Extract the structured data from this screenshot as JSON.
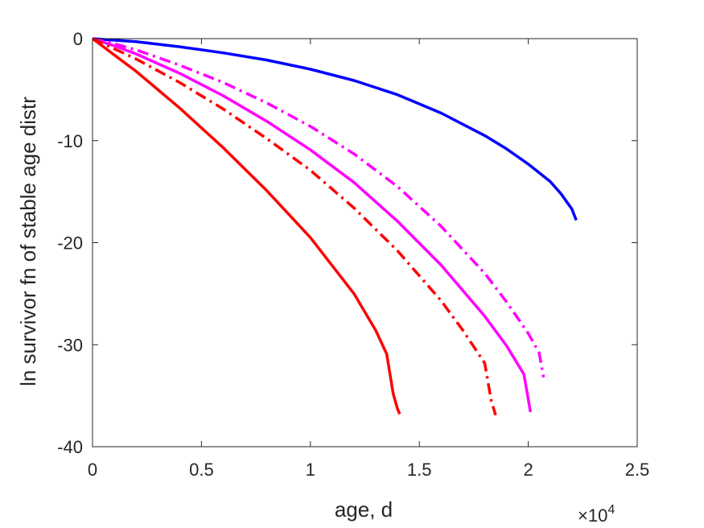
{
  "chart_data": {
    "type": "line",
    "title": "",
    "xlabel": "age, d",
    "ylabel": "ln survivor fn of stable age distr",
    "x_exponent_label": "×10",
    "x_exponent_power": "4",
    "xlim": [
      0,
      25000
    ],
    "ylim": [
      -40,
      0
    ],
    "x_ticks": [
      0,
      5000,
      10000,
      15000,
      20000,
      25000
    ],
    "x_tick_labels": [
      "0",
      "0.5",
      "1",
      "1.5",
      "2",
      "2.5"
    ],
    "y_ticks": [
      0,
      -10,
      -20,
      -30,
      -40
    ],
    "y_tick_labels": [
      "0",
      "-10",
      "-20",
      "-30",
      "-40"
    ],
    "grid": false,
    "legend": "none",
    "series": [
      {
        "color": "#0000ff",
        "dash": "solid",
        "x": [
          0,
          2000,
          4000,
          6000,
          8000,
          10000,
          12000,
          14000,
          16000,
          18000,
          19000,
          20000,
          21000,
          21500,
          22000,
          22200
        ],
        "y": [
          0,
          -0.3,
          -0.8,
          -1.4,
          -2.1,
          -3.0,
          -4.1,
          -5.5,
          -7.3,
          -9.5,
          -10.8,
          -12.3,
          -14.0,
          -15.2,
          -16.7,
          -17.8
        ]
      },
      {
        "color": "#ff00ff",
        "dash": "dashdot",
        "x": [
          0,
          1000,
          2000,
          4000,
          6000,
          8000,
          10000,
          12000,
          14000,
          16000,
          18000,
          19000,
          20000,
          20500,
          20700
        ],
        "y": [
          0,
          -0.5,
          -1.1,
          -2.6,
          -4.3,
          -6.3,
          -8.6,
          -11.3,
          -14.5,
          -18.4,
          -23.0,
          -25.8,
          -28.9,
          -30.8,
          -33.2
        ]
      },
      {
        "color": "#ff00ff",
        "dash": "solid",
        "x": [
          0,
          1000,
          2000,
          4000,
          6000,
          8000,
          10000,
          12000,
          14000,
          16000,
          18000,
          19000,
          19800,
          20100
        ],
        "y": [
          0,
          -0.7,
          -1.5,
          -3.4,
          -5.6,
          -8.1,
          -10.9,
          -14.1,
          -17.9,
          -22.2,
          -27.2,
          -30.1,
          -32.9,
          -36.6
        ]
      },
      {
        "color": "#ff0000",
        "dash": "dashdot",
        "x": [
          0,
          1000,
          2000,
          4000,
          6000,
          8000,
          10000,
          12000,
          14000,
          16000,
          17000,
          18000,
          18300,
          18500
        ],
        "y": [
          0,
          -1.0,
          -2.0,
          -4.3,
          -6.9,
          -9.8,
          -12.9,
          -16.6,
          -20.8,
          -25.7,
          -28.6,
          -31.8,
          -35.5,
          -36.9
        ]
      },
      {
        "color": "#ff0000",
        "dash": "solid",
        "x": [
          0,
          1000,
          2000,
          4000,
          6000,
          8000,
          10000,
          12000,
          13000,
          13500,
          13800,
          14000,
          14100
        ],
        "y": [
          0,
          -1.6,
          -3.2,
          -6.8,
          -10.7,
          -14.9,
          -19.5,
          -25.0,
          -28.6,
          -30.9,
          -34.8,
          -36.3,
          -36.8
        ]
      }
    ]
  }
}
